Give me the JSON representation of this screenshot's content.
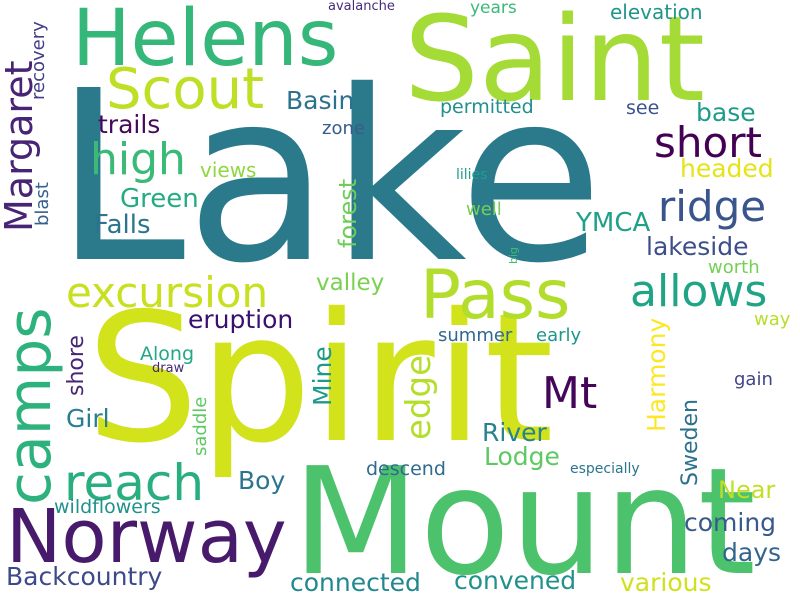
{
  "words": [
    {
      "text": "Lake",
      "color": "#2b7a8c"
    },
    {
      "text": "Spirit",
      "color": "#d2e21b"
    },
    {
      "text": "Mount",
      "color": "#4cc26c"
    },
    {
      "text": "Saint",
      "color": "#a5db36"
    },
    {
      "text": "Helens",
      "color": "#35b779"
    },
    {
      "text": "Norway",
      "color": "#481a6c"
    },
    {
      "text": "Pass",
      "color": "#b2dd2d"
    },
    {
      "text": "camps",
      "color": "#2db27d"
    },
    {
      "text": "Scout",
      "color": "#bddf26"
    },
    {
      "text": "reach",
      "color": "#29af7f"
    },
    {
      "text": "excursion",
      "color": "#c8e020"
    },
    {
      "text": "allows",
      "color": "#20a486"
    },
    {
      "text": "short",
      "color": "#440154"
    },
    {
      "text": "ridge",
      "color": "#39558c"
    },
    {
      "text": "high",
      "color": "#3aba76"
    },
    {
      "text": "Margaret",
      "color": "#482475"
    },
    {
      "text": "Mt",
      "color": "#450559"
    },
    {
      "text": "edge",
      "color": "#b5de2b"
    },
    {
      "text": "Backcountry",
      "color": "#3e4989"
    },
    {
      "text": "connected",
      "color": "#23888e"
    },
    {
      "text": "convened",
      "color": "#21918c"
    },
    {
      "text": "eruption",
      "color": "#3b0f70"
    },
    {
      "text": "trails",
      "color": "#46085c"
    },
    {
      "text": "Green",
      "color": "#25ab82"
    },
    {
      "text": "Falls",
      "color": "#2c738e"
    },
    {
      "text": "YMCA",
      "color": "#1fa187"
    },
    {
      "text": "lakeside",
      "color": "#3d4e8a"
    },
    {
      "text": "Basin",
      "color": "#2c728e"
    },
    {
      "text": "base",
      "color": "#1e9b8a"
    },
    {
      "text": "headed",
      "color": "#e5e419"
    },
    {
      "text": "forest",
      "color": "#6ece58"
    },
    {
      "text": "valley",
      "color": "#7ad151"
    },
    {
      "text": "Mine",
      "color": "#1f9a8a"
    },
    {
      "text": "Harmony",
      "color": "#fde725"
    },
    {
      "text": "River",
      "color": "#26828e"
    },
    {
      "text": "Lodge",
      "color": "#5ec962"
    },
    {
      "text": "Sweden",
      "color": "#2c728e"
    },
    {
      "text": "Near",
      "color": "#c0df25"
    },
    {
      "text": "coming",
      "color": "#38598c"
    },
    {
      "text": "days",
      "color": "#32658e"
    },
    {
      "text": "various",
      "color": "#d0e11c"
    },
    {
      "text": "Girl",
      "color": "#287d8e"
    },
    {
      "text": "Boy",
      "color": "#2a768e"
    },
    {
      "text": "shore",
      "color": "#482677"
    },
    {
      "text": "Along",
      "color": "#22a884"
    },
    {
      "text": "wildflowers",
      "color": "#21918c"
    },
    {
      "text": "descend",
      "color": "#306a8e"
    },
    {
      "text": "saddle",
      "color": "#5ec962"
    },
    {
      "text": "summer",
      "color": "#31688e"
    },
    {
      "text": "early",
      "color": "#1f968b"
    },
    {
      "text": "gain",
      "color": "#404588"
    },
    {
      "text": "way",
      "color": "#b8de29"
    },
    {
      "text": "worth",
      "color": "#75d054"
    },
    {
      "text": "permitted",
      "color": "#218f8d"
    },
    {
      "text": "see",
      "color": "#3b528b"
    },
    {
      "text": "zone",
      "color": "#365c8d"
    },
    {
      "text": "views",
      "color": "#90d743"
    },
    {
      "text": "lilies",
      "color": "#1f9e89"
    },
    {
      "text": "well",
      "color": "#73d056"
    },
    {
      "text": "elevation",
      "color": "#1f968b"
    },
    {
      "text": "years",
      "color": "#3aba76"
    },
    {
      "text": "avalanche",
      "color": "#472c7a"
    },
    {
      "text": "recovery",
      "color": "#433e85"
    },
    {
      "text": "blast",
      "color": "#34618d"
    },
    {
      "text": "big",
      "color": "#3bbb75"
    },
    {
      "text": "draw",
      "color": "#482878"
    },
    {
      "text": "especially",
      "color": "#2a768e"
    }
  ]
}
